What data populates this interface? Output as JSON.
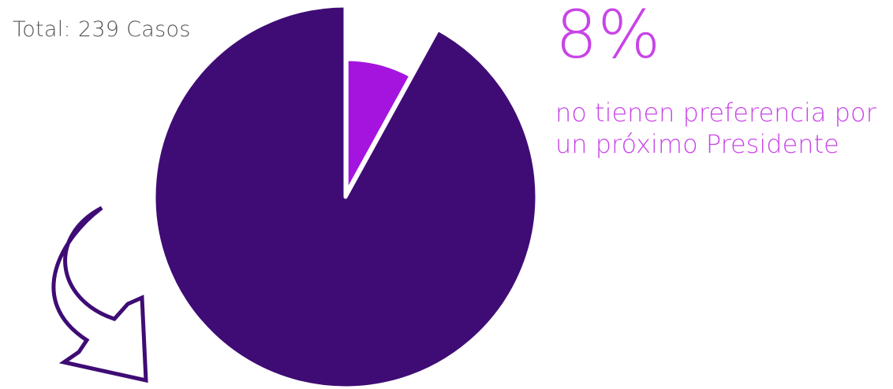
{
  "chart_data": {
    "type": "pie",
    "total_label": "Total: 239 Casos",
    "highlight_percent": "8%",
    "highlight_text_lines": [
      "no tienen preferencia por",
      "un próximo Presidente"
    ],
    "slices": [
      {
        "name": "no tienen preferencia por un próximo Presidente",
        "value": 8,
        "color": "#a514de",
        "exploded": true
      },
      {
        "value": 92,
        "color": "#3f0c75"
      }
    ]
  },
  "colors": {
    "arrow_stroke": "#3f0c75",
    "highlight_text": "#c844e6"
  },
  "icons": {
    "arrow": "curved-arrow-down-icon"
  }
}
